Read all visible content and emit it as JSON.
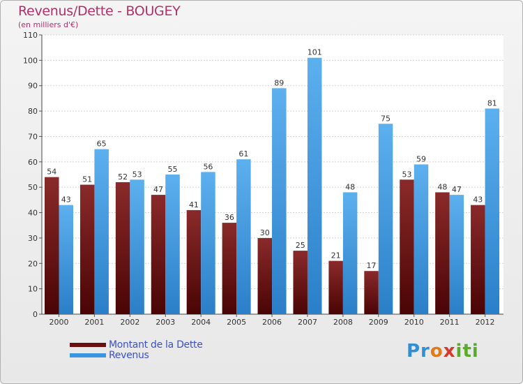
{
  "chart_data": {
    "type": "bar",
    "title": "Revenus/Dette - BOUGEY",
    "subtitle": "(en milliers d'€)",
    "categories": [
      "2000",
      "2001",
      "2002",
      "2003",
      "2004",
      "2005",
      "2006",
      "2007",
      "2008",
      "2009",
      "2010",
      "2011",
      "2012"
    ],
    "series": [
      {
        "name": "Montant de la Dette",
        "color": "#7a1818",
        "values": [
          54,
          51,
          52,
          47,
          41,
          36,
          30,
          25,
          21,
          17,
          53,
          48,
          43
        ]
      },
      {
        "name": "Revenus",
        "color": "#4aa3e6",
        "values": [
          43,
          65,
          53,
          55,
          56,
          61,
          89,
          101,
          48,
          75,
          59,
          47,
          81
        ]
      }
    ],
    "ylim": [
      0,
      110
    ],
    "yticks": [
      0,
      10,
      20,
      30,
      40,
      50,
      60,
      70,
      80,
      90,
      100,
      110
    ],
    "grid": true,
    "xlabel": "",
    "ylabel": ""
  },
  "legend": {
    "debt_label": "Montant de la Dette",
    "revenue_label": "Revenus"
  },
  "logo": {
    "p1": "Pr",
    "p2": "o",
    "p3": "x",
    "p4": "iti"
  }
}
